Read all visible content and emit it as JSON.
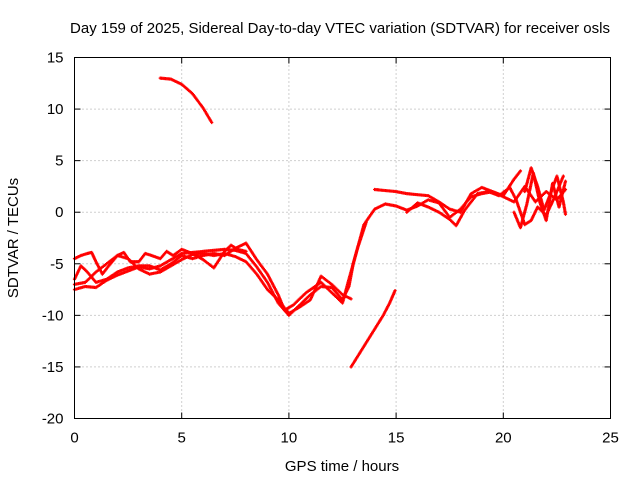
{
  "chart_data": {
    "type": "scatter",
    "title": "Day 159 of 2025, Sidereal Day-to-day VTEC variation (SDTVAR) for receiver osls",
    "xlabel": "GPS time / hours",
    "ylabel": "SDTVAR / TECUs",
    "xlim": [
      0,
      25
    ],
    "ylim": [
      -20,
      15
    ],
    "xticks": [
      "0",
      "5",
      "10",
      "15",
      "20",
      "25"
    ],
    "yticks": [
      "15",
      "10",
      "5",
      "0",
      "-5",
      "-10",
      "-15",
      "-20"
    ],
    "grid": true,
    "grid_style": "dotted",
    "marker_color": "#ff0000",
    "series": [
      {
        "points": [
          [
            4.0,
            13.0
          ],
          [
            4.5,
            12.9
          ],
          [
            5.0,
            12.4
          ],
          [
            5.5,
            11.5
          ],
          [
            6.0,
            10.1
          ],
          [
            6.4,
            8.7
          ]
        ]
      },
      {
        "points": [
          [
            0.0,
            -7.5
          ],
          [
            0.5,
            -7.2
          ],
          [
            1.0,
            -7.3
          ],
          [
            1.5,
            -6.6
          ],
          [
            2.0,
            -6.1
          ],
          [
            2.5,
            -5.7
          ],
          [
            3.0,
            -5.3
          ],
          [
            3.5,
            -5.5
          ],
          [
            4.0,
            -5.2
          ],
          [
            4.5,
            -4.6
          ],
          [
            5.0,
            -4.0
          ],
          [
            5.5,
            -3.9
          ],
          [
            6.0,
            -3.8
          ],
          [
            6.5,
            -3.7
          ],
          [
            7.0,
            -3.6
          ],
          [
            7.5,
            -3.7
          ],
          [
            8.0,
            -4.0
          ],
          [
            8.5,
            -5.3
          ],
          [
            9.0,
            -6.8
          ],
          [
            9.5,
            -8.8
          ],
          [
            10.0,
            -10.0
          ],
          [
            10.5,
            -9.0
          ],
          [
            11.0,
            -8.0
          ],
          [
            11.5,
            -7.2
          ],
          [
            12.0,
            -7.3
          ],
          [
            12.5,
            -8.5
          ],
          [
            12.8,
            -7.2
          ],
          [
            13.0,
            -5.0
          ],
          [
            13.5,
            -1.2
          ],
          [
            14.0,
            0.3
          ],
          [
            14.5,
            0.8
          ],
          [
            15.0,
            0.6
          ],
          [
            15.5,
            0.2
          ],
          [
            16.0,
            0.6
          ],
          [
            16.5,
            1.2
          ],
          [
            17.0,
            0.9
          ],
          [
            17.5,
            -0.5
          ],
          [
            18.0,
            0.3
          ],
          [
            18.5,
            1.5
          ],
          [
            19.0,
            1.8
          ],
          [
            19.5,
            2.0
          ],
          [
            20.0,
            1.5
          ],
          [
            20.5,
            1.0
          ],
          [
            21.0,
            2.5
          ],
          [
            21.5,
            1.0
          ],
          [
            22.0,
            2.0
          ],
          [
            22.5,
            1.2
          ],
          [
            22.9,
            2.2
          ]
        ]
      },
      {
        "points": [
          [
            0.0,
            -6.5
          ],
          [
            0.3,
            -5.2
          ],
          [
            0.6,
            -5.8
          ],
          [
            1.0,
            -6.8
          ],
          [
            1.5,
            -6.5
          ],
          [
            2.0,
            -5.8
          ],
          [
            2.5,
            -5.4
          ],
          [
            3.0,
            -5.2
          ],
          [
            3.5,
            -5.2
          ],
          [
            4.0,
            -5.6
          ],
          [
            4.5,
            -5.0
          ],
          [
            5.0,
            -4.2
          ],
          [
            5.5,
            -4.5
          ],
          [
            6.0,
            -4.2
          ],
          [
            6.5,
            -4.0
          ],
          [
            7.0,
            -4.2
          ],
          [
            7.5,
            -3.5
          ],
          [
            8.0,
            -3.0
          ],
          [
            8.5,
            -4.6
          ],
          [
            9.0,
            -6.0
          ],
          [
            9.5,
            -8.0
          ],
          [
            9.8,
            -9.5
          ],
          [
            10.2,
            -9.0
          ],
          [
            10.8,
            -7.8
          ],
          [
            11.5,
            -6.8
          ],
          [
            12.0,
            -7.8
          ],
          [
            12.5,
            -8.8
          ],
          [
            12.8,
            -6.5
          ],
          [
            13.2,
            -3.5
          ],
          [
            13.6,
            -1.0
          ]
        ]
      },
      {
        "points": [
          [
            0.0,
            -4.5
          ],
          [
            0.3,
            -4.2
          ],
          [
            0.6,
            -4.0
          ],
          [
            0.8,
            -3.9
          ],
          [
            1.0,
            -4.8
          ],
          [
            1.3,
            -6.0
          ],
          [
            1.6,
            -5.2
          ],
          [
            2.0,
            -4.2
          ],
          [
            2.3,
            -3.9
          ],
          [
            2.6,
            -4.8
          ],
          [
            3.0,
            -4.8
          ],
          [
            3.3,
            -4.0
          ],
          [
            3.6,
            -4.2
          ],
          [
            4.0,
            -4.5
          ],
          [
            4.3,
            -3.8
          ],
          [
            4.6,
            -4.2
          ],
          [
            5.0,
            -3.6
          ],
          [
            5.5,
            -4.0
          ],
          [
            6.0,
            -4.6
          ],
          [
            6.5,
            -5.4
          ],
          [
            7.0,
            -3.8
          ],
          [
            7.3,
            -3.2
          ],
          [
            7.6,
            -3.6
          ],
          [
            8.0,
            -3.8
          ]
        ]
      },
      {
        "points": [
          [
            0.0,
            -7.0
          ],
          [
            0.5,
            -6.8
          ],
          [
            1.0,
            -5.8
          ],
          [
            1.5,
            -5.0
          ],
          [
            2.0,
            -4.2
          ],
          [
            2.5,
            -4.5
          ],
          [
            3.0,
            -5.5
          ],
          [
            3.5,
            -6.0
          ],
          [
            4.0,
            -5.8
          ],
          [
            4.5,
            -5.2
          ],
          [
            5.0,
            -4.6
          ],
          [
            5.5,
            -4.1
          ],
          [
            6.0,
            -4.0
          ],
          [
            6.5,
            -4.2
          ],
          [
            7.0,
            -4.0
          ],
          [
            7.5,
            -4.3
          ],
          [
            8.0,
            -4.8
          ],
          [
            8.5,
            -6.0
          ],
          [
            9.0,
            -7.5
          ],
          [
            9.5,
            -8.5
          ],
          [
            10.0,
            -9.8
          ],
          [
            10.5,
            -9.2
          ],
          [
            11.0,
            -8.5
          ],
          [
            11.5,
            -6.2
          ],
          [
            12.0,
            -7.0
          ],
          [
            12.5,
            -8.0
          ],
          [
            12.9,
            -8.4
          ]
        ]
      },
      {
        "points": [
          [
            14.0,
            2.2
          ],
          [
            14.5,
            2.1
          ],
          [
            15.0,
            2.0
          ],
          [
            15.5,
            1.8
          ],
          [
            16.0,
            1.7
          ],
          [
            16.5,
            1.6
          ],
          [
            17.0,
            1.0
          ],
          [
            17.5,
            0.3
          ],
          [
            18.0,
            0.0
          ],
          [
            18.5,
            1.8
          ],
          [
            19.0,
            2.4
          ],
          [
            19.5,
            2.0
          ],
          [
            20.0,
            1.6
          ],
          [
            20.5,
            3.2
          ],
          [
            20.8,
            4.0
          ]
        ]
      },
      {
        "points": [
          [
            15.5,
            0.0
          ],
          [
            16.0,
            0.9
          ],
          [
            16.5,
            0.5
          ],
          [
            17.0,
            0.0
          ],
          [
            17.5,
            -0.7
          ],
          [
            17.8,
            -1.3
          ],
          [
            18.2,
            0.2
          ],
          [
            18.8,
            1.8
          ],
          [
            19.3,
            2.0
          ],
          [
            19.8,
            1.6
          ],
          [
            20.3,
            2.4
          ],
          [
            20.6,
            1.2
          ],
          [
            21.0,
            -1.2
          ],
          [
            21.3,
            -0.8
          ],
          [
            21.6,
            0.5
          ],
          [
            22.0,
            -0.3
          ],
          [
            22.4,
            1.5
          ],
          [
            22.8,
            3.5
          ]
        ]
      },
      {
        "points": [
          [
            20.5,
            0.0
          ],
          [
            20.8,
            -1.5
          ],
          [
            21.1,
            0.8
          ],
          [
            21.4,
            3.8
          ],
          [
            21.7,
            1.0
          ],
          [
            22.0,
            -0.8
          ],
          [
            22.3,
            2.8
          ],
          [
            22.6,
            0.5
          ],
          [
            22.9,
            3.0
          ]
        ]
      },
      {
        "points": [
          [
            21.0,
            2.0
          ],
          [
            21.3,
            4.3
          ],
          [
            21.6,
            2.5
          ],
          [
            21.9,
            0.2
          ],
          [
            22.2,
            1.8
          ],
          [
            22.5,
            3.5
          ],
          [
            22.8,
            1.0
          ],
          [
            22.9,
            -0.2
          ]
        ]
      },
      {
        "points": [
          [
            12.9,
            -15.0
          ],
          [
            13.2,
            -14.0
          ],
          [
            13.5,
            -13.0
          ],
          [
            13.8,
            -12.0
          ],
          [
            14.1,
            -11.0
          ],
          [
            14.4,
            -10.0
          ],
          [
            14.7,
            -8.8
          ],
          [
            14.95,
            -7.6
          ]
        ]
      }
    ]
  }
}
